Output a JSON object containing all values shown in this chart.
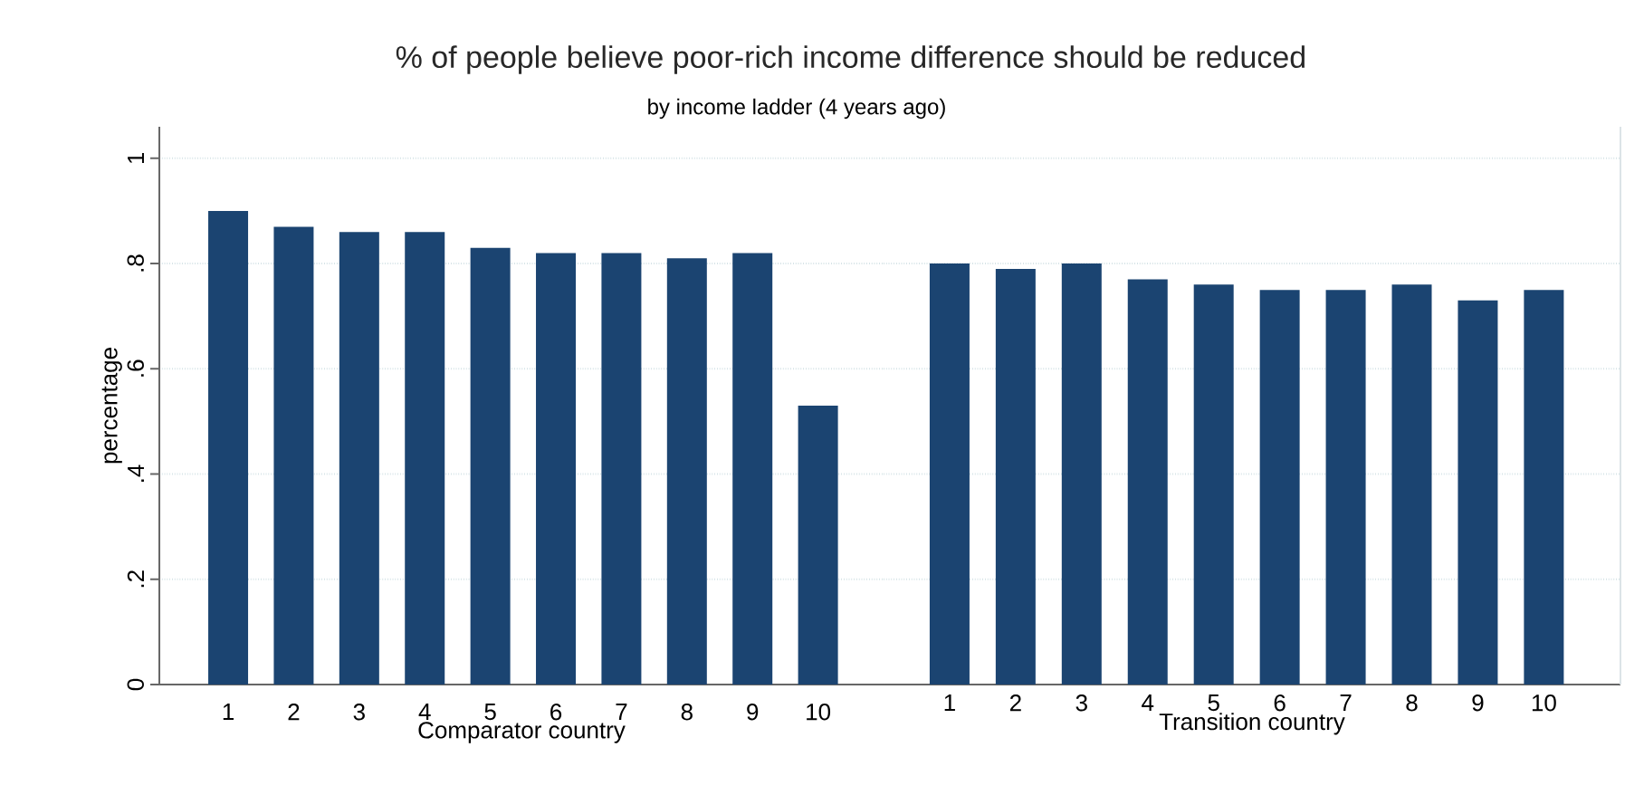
{
  "chart_data": [
    {
      "type": "bar",
      "title": "% of people believe poor-rich income difference should be reduced",
      "subtitle": "by income ladder (4 years ago)",
      "xlabel": "Comparator country",
      "ylabel": "percentage",
      "categories": [
        "1",
        "2",
        "3",
        "4",
        "5",
        "6",
        "7",
        "8",
        "9",
        "10"
      ],
      "values": [
        0.9,
        0.87,
        0.86,
        0.86,
        0.83,
        0.82,
        0.82,
        0.81,
        0.82,
        0.53
      ],
      "color": "#1b4471",
      "ylim": [
        0,
        1.06
      ],
      "yticks": [
        0,
        {
          "value": 0.2,
          "label": ".2"
        },
        {
          "value": 0.4,
          "label": ".4"
        },
        {
          "value": 0.6,
          "label": ".6"
        },
        {
          "value": 0.8,
          "label": ".8"
        },
        1
      ],
      "grid": "y"
    },
    {
      "type": "bar",
      "xlabel": "Transition country",
      "categories": [
        "1",
        "2",
        "3",
        "4",
        "5",
        "6",
        "7",
        "8",
        "9",
        "10"
      ],
      "values": [
        0.8,
        0.79,
        0.8,
        0.77,
        0.76,
        0.75,
        0.75,
        0.76,
        0.73,
        0.75
      ],
      "color": "#1b4471",
      "ylim": [
        0,
        1.06
      ],
      "yticks": [
        {
          "value": 0,
          "label": null
        },
        {
          "value": 0.2,
          "label": null
        },
        {
          "value": 0.4,
          "label": null
        },
        {
          "value": 0.6,
          "label": null
        },
        {
          "value": 0.8,
          "label": null
        },
        {
          "value": 1,
          "label": null
        }
      ],
      "grid": "y",
      "tick_labels": "x"
    }
  ]
}
